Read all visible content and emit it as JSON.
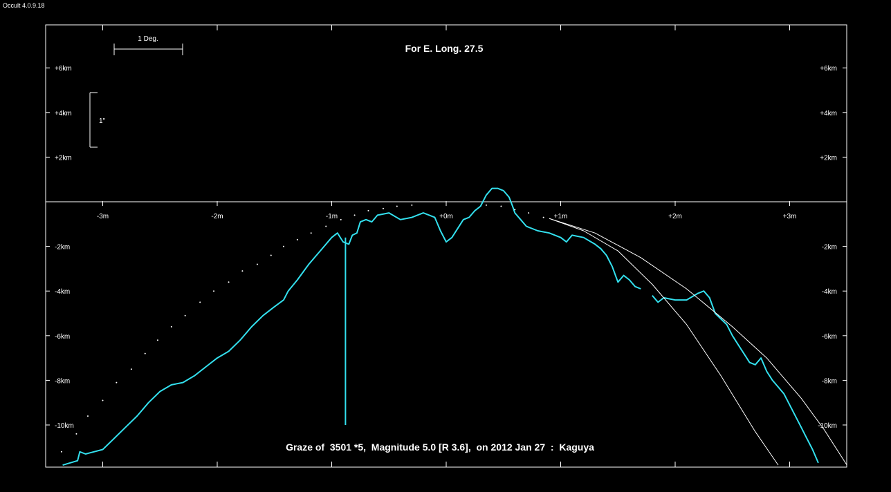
{
  "app": {
    "version_label": "Occult 4.0.9.18"
  },
  "chart_data": {
    "type": "line",
    "title": "For E. Long. 27.5",
    "footer": "Graze of  3501 *5,  Magnitude 5.0 [R 3.6],  on 2012 Jan 27  :  Kaguya",
    "xlim": [
      -3.6,
      3.5
    ],
    "ylim": [
      -11.8,
      8.0
    ],
    "x_ticks": [
      {
        "value": -3,
        "label": "-3m"
      },
      {
        "value": -2,
        "label": "-2m"
      },
      {
        "value": -1,
        "label": "-1m"
      },
      {
        "value": 0,
        "label": "+0m"
      },
      {
        "value": 1,
        "label": "+1m"
      },
      {
        "value": 2,
        "label": "+2m"
      },
      {
        "value": 3,
        "label": "+3m"
      }
    ],
    "y_ticks": [
      {
        "value": 6,
        "label": "+6km"
      },
      {
        "value": 4,
        "label": "+4km"
      },
      {
        "value": 2,
        "label": "+2km"
      },
      {
        "value": -2,
        "label": "-2km"
      },
      {
        "value": -4,
        "label": "-4km"
      },
      {
        "value": -6,
        "label": "-6km"
      },
      {
        "value": -8,
        "label": "-8km"
      },
      {
        "value": -10,
        "label": "-10km"
      }
    ],
    "scale_bars": {
      "degree_label": "1 Deg.",
      "arcsec_label": "1\""
    },
    "series": [
      {
        "color": "#33e0ee",
        "style": "profile",
        "points": [
          [
            -3.35,
            -11.8
          ],
          [
            -3.22,
            -11.6
          ],
          [
            -3.2,
            -11.2
          ],
          [
            -3.15,
            -11.3
          ],
          [
            -3.0,
            -11.1
          ],
          [
            -2.9,
            -10.6
          ],
          [
            -2.8,
            -10.1
          ],
          [
            -2.7,
            -9.6
          ],
          [
            -2.6,
            -9.0
          ],
          [
            -2.5,
            -8.5
          ],
          [
            -2.4,
            -8.2
          ],
          [
            -2.3,
            -8.1
          ],
          [
            -2.2,
            -7.8
          ],
          [
            -2.1,
            -7.4
          ],
          [
            -2.0,
            -7.0
          ],
          [
            -1.9,
            -6.7
          ],
          [
            -1.8,
            -6.2
          ],
          [
            -1.7,
            -5.6
          ],
          [
            -1.6,
            -5.1
          ],
          [
            -1.5,
            -4.7
          ],
          [
            -1.42,
            -4.4
          ],
          [
            -1.38,
            -4.0
          ],
          [
            -1.3,
            -3.5
          ],
          [
            -1.2,
            -2.8
          ],
          [
            -1.1,
            -2.2
          ],
          [
            -1.0,
            -1.6
          ],
          [
            -0.95,
            -1.4
          ],
          [
            -0.9,
            -1.8
          ],
          [
            -0.85,
            -1.9
          ],
          [
            -0.82,
            -1.5
          ],
          [
            -0.78,
            -1.4
          ],
          [
            -0.75,
            -0.9
          ],
          [
            -0.7,
            -0.8
          ],
          [
            -0.65,
            -0.9
          ],
          [
            -0.6,
            -0.6
          ],
          [
            -0.5,
            -0.5
          ],
          [
            -0.4,
            -0.8
          ],
          [
            -0.3,
            -0.7
          ],
          [
            -0.2,
            -0.5
          ],
          [
            -0.1,
            -0.7
          ],
          [
            -0.05,
            -1.3
          ],
          [
            0.0,
            -1.8
          ],
          [
            0.05,
            -1.6
          ],
          [
            0.1,
            -1.2
          ],
          [
            0.15,
            -0.8
          ],
          [
            0.2,
            -0.7
          ],
          [
            0.25,
            -0.4
          ],
          [
            0.3,
            -0.2
          ],
          [
            0.35,
            0.3
          ],
          [
            0.4,
            0.6
          ],
          [
            0.45,
            0.6
          ],
          [
            0.5,
            0.5
          ],
          [
            0.55,
            0.2
          ],
          [
            0.58,
            -0.2
          ],
          [
            0.6,
            -0.5
          ],
          [
            0.65,
            -0.8
          ],
          [
            0.7,
            -1.1
          ],
          [
            0.8,
            -1.3
          ],
          [
            0.9,
            -1.4
          ],
          [
            1.0,
            -1.6
          ],
          [
            1.05,
            -1.8
          ],
          [
            1.1,
            -1.5
          ],
          [
            1.2,
            -1.6
          ],
          [
            1.3,
            -1.9
          ],
          [
            1.35,
            -2.1
          ],
          [
            1.4,
            -2.4
          ],
          [
            1.45,
            -2.9
          ],
          [
            1.5,
            -3.6
          ],
          [
            1.55,
            -3.3
          ],
          [
            1.6,
            -3.5
          ],
          [
            1.65,
            -3.8
          ],
          [
            1.7,
            -3.9
          ]
        ]
      },
      {
        "color": "#33e0ee",
        "style": "profile",
        "points": [
          [
            1.8,
            -4.2
          ],
          [
            1.85,
            -4.5
          ],
          [
            1.9,
            -4.3
          ],
          [
            2.0,
            -4.4
          ],
          [
            2.1,
            -4.4
          ],
          [
            2.2,
            -4.1
          ],
          [
            2.25,
            -4.0
          ],
          [
            2.3,
            -4.3
          ],
          [
            2.35,
            -5.0
          ],
          [
            2.45,
            -5.5
          ],
          [
            2.5,
            -6.0
          ],
          [
            2.55,
            -6.4
          ],
          [
            2.6,
            -6.8
          ],
          [
            2.65,
            -7.2
          ],
          [
            2.7,
            -7.3
          ],
          [
            2.75,
            -7.0
          ],
          [
            2.8,
            -7.6
          ],
          [
            2.85,
            -8.0
          ],
          [
            2.9,
            -8.3
          ],
          [
            2.95,
            -8.6
          ],
          [
            3.0,
            -9.1
          ],
          [
            3.05,
            -9.6
          ],
          [
            3.1,
            -10.1
          ],
          [
            3.15,
            -10.6
          ],
          [
            3.2,
            -11.1
          ],
          [
            3.25,
            -11.7
          ]
        ]
      },
      {
        "color": "#33e0ee",
        "style": "spike",
        "points": [
          [
            -0.88,
            -1.6
          ],
          [
            -0.88,
            -10.0
          ]
        ]
      },
      {
        "color": "#ffffff",
        "style": "dots",
        "points": [
          [
            -3.36,
            -11.2
          ],
          [
            -3.23,
            -10.4
          ],
          [
            -3.13,
            -9.6
          ],
          [
            -3.0,
            -8.9
          ],
          [
            -2.88,
            -8.1
          ],
          [
            -2.75,
            -7.5
          ],
          [
            -2.63,
            -6.8
          ],
          [
            -2.52,
            -6.2
          ],
          [
            -2.4,
            -5.6
          ],
          [
            -2.28,
            -5.1
          ],
          [
            -2.15,
            -4.5
          ],
          [
            -2.03,
            -4.0
          ],
          [
            -1.9,
            -3.6
          ],
          [
            -1.78,
            -3.1
          ],
          [
            -1.65,
            -2.8
          ],
          [
            -1.53,
            -2.4
          ],
          [
            -1.42,
            -2.0
          ],
          [
            -1.3,
            -1.7
          ],
          [
            -1.18,
            -1.4
          ],
          [
            -1.05,
            -1.1
          ],
          [
            -0.92,
            -0.8
          ],
          [
            -0.8,
            -0.6
          ],
          [
            -0.68,
            -0.4
          ],
          [
            -0.55,
            -0.3
          ],
          [
            -0.43,
            -0.2
          ],
          [
            -0.3,
            -0.15
          ],
          [
            0.35,
            -0.15
          ],
          [
            0.48,
            -0.2
          ],
          [
            0.6,
            -0.35
          ],
          [
            0.72,
            -0.5
          ],
          [
            0.85,
            -0.7
          ]
        ]
      },
      {
        "color": "#ffffff",
        "style": "limb",
        "points": [
          [
            0.9,
            -0.75
          ],
          [
            1.2,
            -1.3
          ],
          [
            1.5,
            -2.2
          ],
          [
            1.8,
            -3.7
          ],
          [
            2.1,
            -5.5
          ],
          [
            2.4,
            -7.8
          ],
          [
            2.7,
            -10.3
          ],
          [
            2.9,
            -11.8
          ]
        ]
      },
      {
        "color": "#ffffff",
        "style": "limb",
        "points": [
          [
            0.9,
            -0.75
          ],
          [
            1.3,
            -1.4
          ],
          [
            1.7,
            -2.5
          ],
          [
            2.1,
            -3.9
          ],
          [
            2.5,
            -5.6
          ],
          [
            2.8,
            -7.0
          ],
          [
            3.1,
            -8.8
          ],
          [
            3.3,
            -10.2
          ],
          [
            3.5,
            -11.8
          ]
        ]
      }
    ]
  }
}
